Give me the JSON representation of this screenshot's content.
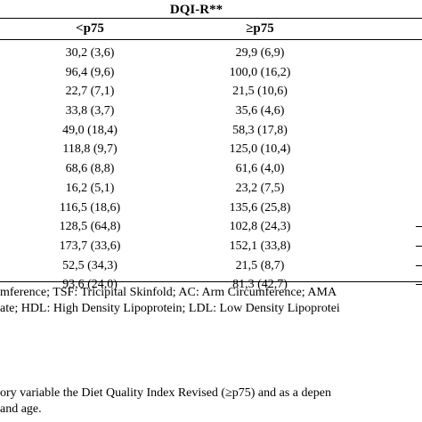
{
  "header": {
    "group_label": "DQI-R**",
    "columns": [
      "<p75",
      "≥p75"
    ]
  },
  "rows": [
    {
      "a": "30,2 (3,6)",
      "b": "29,9 (6,9)",
      "dash": false
    },
    {
      "a": "96,4 (9,6)",
      "b": "100,0 (16,2)",
      "dash": false
    },
    {
      "a": "22,7 (7,1)",
      "b": "21,5 (10,6)",
      "dash": false
    },
    {
      "a": "33,8 (3,7)",
      "b": "35,6 (4,6)",
      "dash": false
    },
    {
      "a": "49,0 (18,4)",
      "b": "58,3 (17,8)",
      "dash": false
    },
    {
      "a": "118,8 (9,7)",
      "b": "125,0 (10,4)",
      "dash": false
    },
    {
      "a": "68,6 (8,8)",
      "b": "61,6 (4,0)",
      "dash": false
    },
    {
      "a": "16,2 (5,1)",
      "b": "23,2 (7,5)",
      "dash": false
    },
    {
      "a": "116,5 (18,6)",
      "b": "135,6 (25,8)",
      "dash": false
    },
    {
      "a": "128,5 (64,8)",
      "b": "102,8 (24,3)",
      "dash": true
    },
    {
      "a": "173,7 (33,6)",
      "b": "152,1 (33,8)",
      "dash": true
    },
    {
      "a": "52,5 (34,3)",
      "b": "21,5 (8,7)",
      "dash": true
    },
    {
      "a": "93,6 (24,0)",
      "b": "81,3 (42,7)",
      "dash": true
    }
  ],
  "footnotes": [
    "mference; TSF: Tricipital Skinfold; AC: Arm Circumference; AMA",
    "ate; HDL: High Density Lipoprotein; LDL: Low Density Lipoprotei",
    "ory variable the Diet Quality Index Revised (≥p75) and as a depen",
    " and age."
  ]
}
